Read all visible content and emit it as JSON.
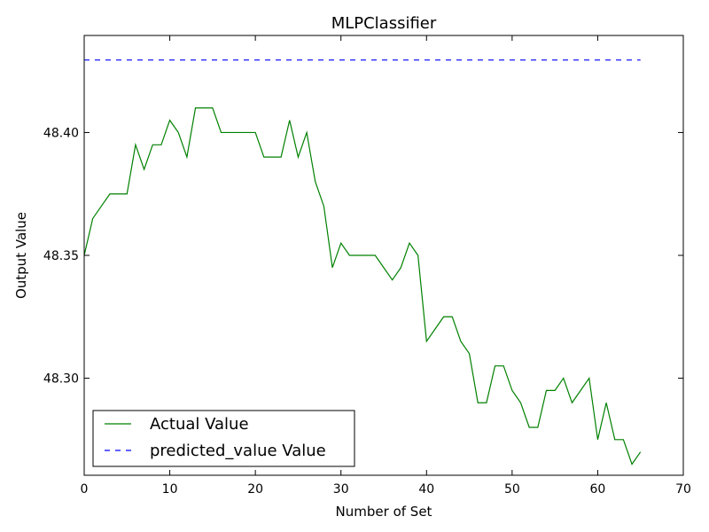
{
  "chart_data": {
    "type": "line",
    "title": "MLPClassifier",
    "xlabel": "Number of Set",
    "ylabel": "Output Value",
    "xlim": [
      0,
      70
    ],
    "ylim": [
      48.2605,
      48.4395
    ],
    "xticks": [
      0,
      10,
      20,
      30,
      40,
      50,
      60,
      70
    ],
    "xtick_labels": [
      "0",
      "10",
      "20",
      "30",
      "40",
      "50",
      "60",
      "70"
    ],
    "yticks": [
      48.3,
      48.35,
      48.4
    ],
    "ytick_labels": [
      "48.30",
      "48.35",
      "48.40"
    ],
    "grid": false,
    "legend_position": "lower-left",
    "series": [
      {
        "name": "Actual Value",
        "color": "#008000",
        "style": "solid",
        "x": [
          0,
          1,
          2,
          3,
          4,
          5,
          6,
          7,
          8,
          9,
          10,
          11,
          12,
          13,
          14,
          15,
          16,
          17,
          18,
          19,
          20,
          21,
          22,
          23,
          24,
          25,
          26,
          27,
          28,
          29,
          30,
          31,
          32,
          33,
          34,
          35,
          36,
          37,
          38,
          39,
          40,
          41,
          42,
          43,
          44,
          45,
          46,
          47,
          48,
          49,
          50,
          51,
          52,
          53,
          54,
          55,
          56,
          57,
          58,
          59,
          60,
          61,
          62,
          63,
          64,
          65
        ],
        "values": [
          48.35,
          48.365,
          48.37,
          48.375,
          48.375,
          48.375,
          48.395,
          48.385,
          48.395,
          48.395,
          48.405,
          48.4,
          48.39,
          48.41,
          48.41,
          48.41,
          48.4,
          48.4,
          48.4,
          48.4,
          48.4,
          48.39,
          48.39,
          48.39,
          48.405,
          48.39,
          48.4,
          48.38,
          48.37,
          48.345,
          48.355,
          48.35,
          48.35,
          48.35,
          48.35,
          48.345,
          48.34,
          48.345,
          48.355,
          48.35,
          48.315,
          48.32,
          48.325,
          48.325,
          48.315,
          48.31,
          48.29,
          48.29,
          48.305,
          48.305,
          48.295,
          48.29,
          48.28,
          48.28,
          48.295,
          48.295,
          48.3,
          48.29,
          48.295,
          48.3,
          48.275,
          48.29,
          48.275,
          48.275,
          48.265,
          48.27
        ]
      },
      {
        "name": "predicted_value Value",
        "color": "#0000ff",
        "style": "dashed",
        "x": [
          0,
          65
        ],
        "values": [
          48.4295,
          48.4295
        ]
      }
    ]
  }
}
